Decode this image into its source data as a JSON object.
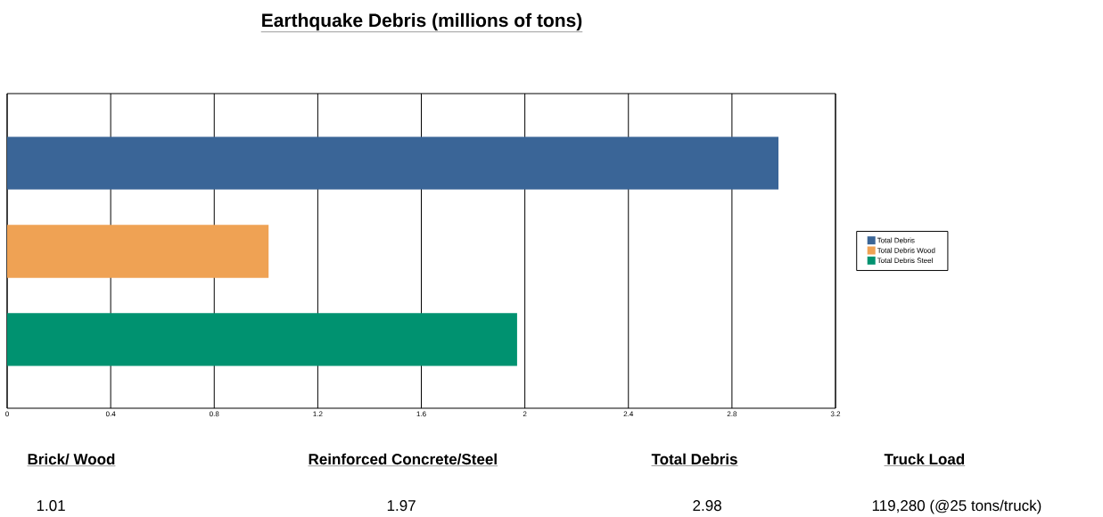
{
  "chart_data": {
    "type": "bar",
    "orientation": "horizontal",
    "title": "Earthquake Debris (millions of tons)",
    "categories": [
      null,
      null,
      null
    ],
    "series": [
      {
        "name": "Total Debris",
        "color": "#3a6597",
        "values": [
          2.98,
          null,
          null
        ]
      },
      {
        "name": "Total Debris Wood",
        "color": "#efa254",
        "values": [
          null,
          1.01,
          null
        ]
      },
      {
        "name": "Total Debris Steel",
        "color": "#009270",
        "values": [
          null,
          null,
          1.97
        ]
      }
    ],
    "xlim": [
      0,
      3.2
    ],
    "xticks": [
      0,
      0.4,
      0.8,
      1.2,
      1.6,
      2,
      2.4,
      2.8,
      3.2
    ],
    "grid": "x",
    "legend": "right",
    "tick_labels": "x",
    "annotations": [
      "Brick/ Wood",
      "Reinforced Concrete/Steel",
      "Total  Debris",
      "Truck Load",
      "1.01",
      "1.97",
      "2.98",
      "119,280 (@25 tons/truck)"
    ]
  }
}
